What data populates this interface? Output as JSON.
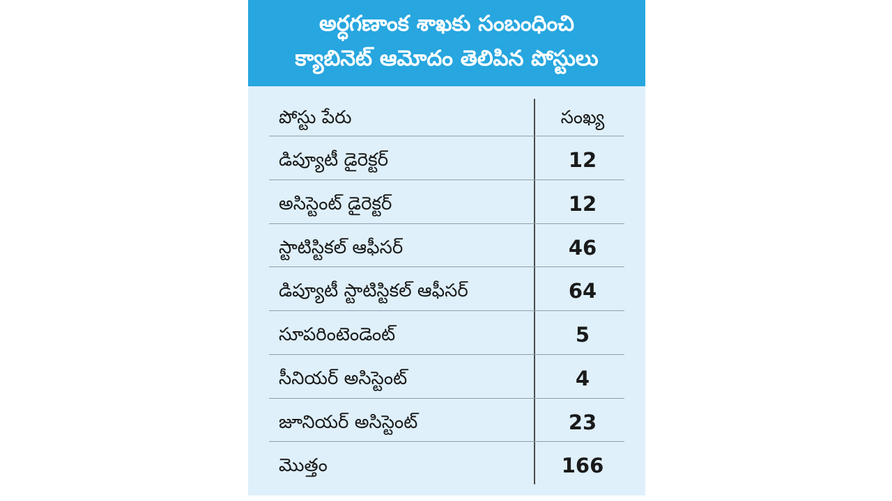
{
  "header": {
    "line1": "అర్ధగణాంక శాఖకు సంబంధించి",
    "line2": "క్యాబినెట్ ఆమోదం తెలిపిన పోస్టులు"
  },
  "table": {
    "columns": [
      "పోస్టు పేరు",
      "సంఖ్య"
    ],
    "rows": [
      {
        "name": "డిప్యూటీ డైరెక్టర్",
        "count": "12"
      },
      {
        "name": "అసిస్టెంట్ డైరెక్టర్",
        "count": "12"
      },
      {
        "name": "స్టాటిస్టికల్ ఆఫీసర్",
        "count": "46"
      },
      {
        "name": "డిప్యూటీ స్టాటిస్టికల్ ఆఫీసర్",
        "count": "64"
      },
      {
        "name": "సూపరింటెండెంట్",
        "count": "5"
      },
      {
        "name": "సీనియర్ అసిస్టెంట్",
        "count": "4"
      },
      {
        "name": "జూనియర్ అసిస్టెంట్",
        "count": "23"
      },
      {
        "name": "మొత్తం",
        "count": "166"
      }
    ]
  },
  "colors": {
    "header_bg": "#27a6df",
    "body_bg": "#dff0fa"
  }
}
